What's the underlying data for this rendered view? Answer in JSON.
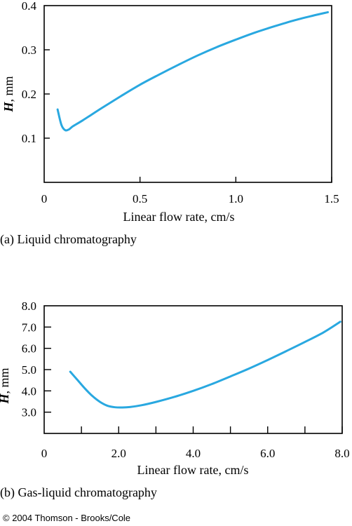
{
  "colors": {
    "line": "#29a8e0",
    "axis": "#000000"
  },
  "copyright": "© 2004 Thomson - Brooks/Cole",
  "chart_data": [
    {
      "type": "line",
      "caption": "(a) Liquid chromatography",
      "xlabel": "Linear flow rate, cm/s",
      "ylabel_var": "H",
      "ylabel_unit": ", mm",
      "xlim": [
        0,
        1.5
      ],
      "ylim": [
        0,
        0.4
      ],
      "xticks": [
        0,
        0.5,
        1.0,
        1.5
      ],
      "xtick_labels": [
        "0",
        "0.5",
        "1.0",
        "1.5"
      ],
      "yticks": [
        0.1,
        0.2,
        0.3,
        0.4
      ],
      "ytick_labels": [
        "0.1",
        "0.2",
        "0.3",
        "0.4"
      ],
      "grid": false,
      "series": [
        {
          "x": [
            0.07,
            0.09,
            0.11,
            0.13,
            0.15,
            0.2,
            0.3,
            0.4,
            0.5,
            0.6,
            0.7,
            0.8,
            0.9,
            1.0,
            1.1,
            1.2,
            1.3,
            1.4,
            1.48
          ],
          "values": [
            0.165,
            0.13,
            0.118,
            0.12,
            0.127,
            0.14,
            0.168,
            0.195,
            0.221,
            0.244,
            0.266,
            0.287,
            0.306,
            0.323,
            0.339,
            0.353,
            0.366,
            0.377,
            0.385
          ]
        }
      ]
    },
    {
      "type": "line",
      "caption": "(b) Gas-liquid chromatography",
      "xlabel": "Linear flow rate, cm/s",
      "ylabel_var": "H",
      "ylabel_unit": ", mm",
      "xlim": [
        0,
        8.0
      ],
      "ylim": [
        2.0,
        8.0
      ],
      "xticks": [
        0,
        2.0,
        4.0,
        6.0,
        8.0
      ],
      "xtick_labels": [
        "0",
        "2.0",
        "4.0",
        "6.0",
        "8.0"
      ],
      "xminor_ticks": [
        1.0,
        3.0,
        5.0,
        7.0
      ],
      "yticks": [
        3.0,
        4.0,
        5.0,
        6.0,
        7.0,
        8.0
      ],
      "ytick_labels": [
        "3.0",
        "4.0",
        "5.0",
        "6.0",
        "7.0",
        "8.0"
      ],
      "grid": false,
      "series": [
        {
          "x": [
            0.7,
            0.9,
            1.1,
            1.3,
            1.5,
            1.7,
            1.9,
            2.1,
            2.3,
            2.6,
            3.0,
            3.5,
            4.0,
            4.5,
            5.0,
            5.5,
            6.0,
            6.5,
            7.0,
            7.5,
            7.95
          ],
          "values": [
            4.9,
            4.5,
            4.1,
            3.75,
            3.48,
            3.3,
            3.23,
            3.22,
            3.24,
            3.32,
            3.48,
            3.72,
            4.0,
            4.32,
            4.68,
            5.05,
            5.45,
            5.87,
            6.3,
            6.75,
            7.25
          ]
        }
      ]
    }
  ]
}
